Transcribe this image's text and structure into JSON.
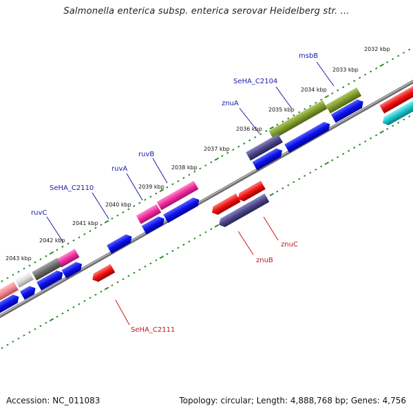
{
  "title": "Salmonella enterica subsp. enterica serovar Heidelberg str. ...",
  "footer": {
    "accession": "Accession: NC_011083",
    "summary": "Topology: circular; Length: 4,888,768 bp; Genes: 4,756"
  },
  "colors": {
    "backbone": "#8a8a8a",
    "tick": "#2b8a2b",
    "gene_label_forward": "#1a1aa6",
    "gene_label_reverse": "#cc1111",
    "blue": "#0a12e8",
    "magenta": "#ee2c9e",
    "olive": "#7e9a2a",
    "navy": "#4a4688",
    "red": "#ee1010",
    "cyan": "#19c2c9",
    "gray": "#6c6c6c",
    "pink": "#ee8890"
  },
  "kbp_labels": [
    "2032 kbp",
    "2033 kbp",
    "2034 kbp",
    "2035 kbp",
    "2036 kbp",
    "2037 kbp",
    "2038 kbp",
    "2039 kbp",
    "2040 kbp",
    "2041 kbp",
    "2042 kbp",
    "2043 kbp"
  ],
  "gene_labels": {
    "msbB": "msbB",
    "SeHA_C2104": "SeHA_C2104",
    "znuA": "znuA",
    "ruvB": "ruvB",
    "ruvA": "ruvA",
    "SeHA_C2110": "SeHA_C2110",
    "ruvC": "ruvC",
    "znuC": "znuC",
    "znuB": "znuB",
    "SeHA_C2111": "SeHA_C2111"
  }
}
